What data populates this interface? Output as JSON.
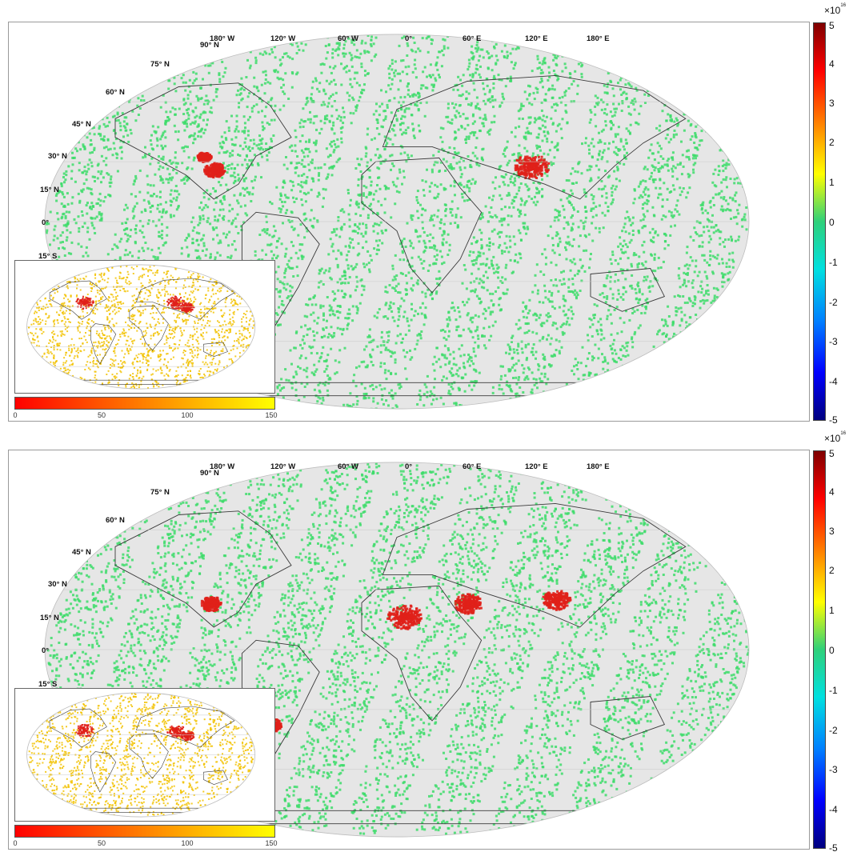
{
  "panels": [
    {
      "id": "top",
      "lon_labels": [
        "180° W",
        "120° W",
        "60° W",
        "0°",
        "60° E",
        "120° E",
        "180° E"
      ],
      "lat_labels": [
        "90° N",
        "75° N",
        "60° N",
        "45° N",
        "30° N",
        "15° N",
        "0°",
        "15° S"
      ],
      "colorbar": {
        "exponent": "×10",
        "exponent_power": "16",
        "ticks": [
          "5",
          "4",
          "3",
          "2",
          "1",
          "0",
          "-1",
          "-2",
          "-3",
          "-4",
          "-5"
        ]
      },
      "inset_colorbar": {
        "ticks": [
          "0",
          "50",
          "100",
          "150"
        ]
      }
    },
    {
      "id": "bottom",
      "lon_labels": [
        "180° W",
        "120° W",
        "60° W",
        "0°",
        "60° E",
        "120° E",
        "180° E"
      ],
      "lat_labels": [
        "90° N",
        "75° N",
        "60° N",
        "45° N",
        "30° N",
        "15° N",
        "0°",
        "15° S"
      ],
      "colorbar": {
        "exponent": "×10",
        "exponent_power": "16",
        "ticks": [
          "5",
          "4",
          "3",
          "2",
          "1",
          "0",
          "-1",
          "-2",
          "-3",
          "-4",
          "-5"
        ]
      },
      "inset_colorbar": {
        "ticks": [
          "0",
          "50",
          "100",
          "150"
        ]
      }
    }
  ],
  "colors": {
    "land_outline": "#3a3a3a",
    "swath_gap": "#d9d9d9",
    "data_green": "#3ddc6a",
    "hotspot_red": "#e0201a",
    "inset_yellow": "#f2c200"
  }
}
